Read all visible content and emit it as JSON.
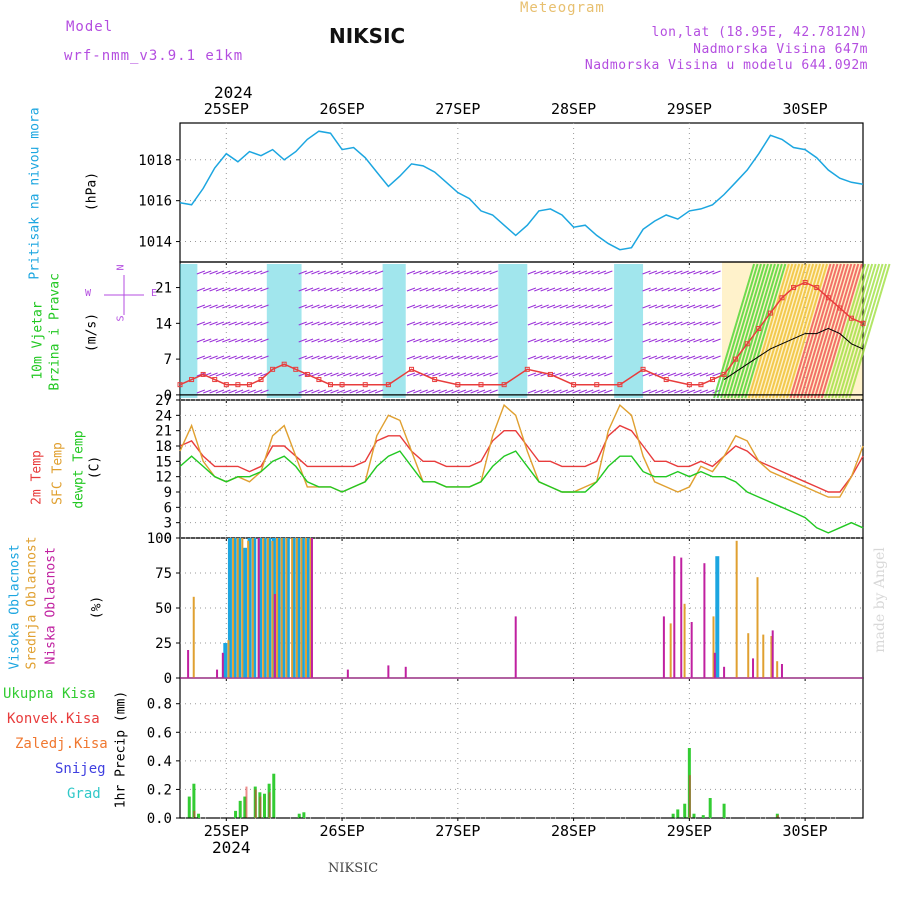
{
  "header": {
    "model_label": "Model",
    "model_version": "wrf-nmm_v3.9.1  e1km",
    "title": "NIKSIC",
    "meteogram": "Meteogram",
    "lonlat": "lon,lat (18.95E, 42.7812N)",
    "altitude": "Nadmorska Visina 647m",
    "model_altitude": "Nadmorska Visina u modelu 644.092m",
    "year_top": "2024",
    "year_bottom": "2024",
    "footer": "NIKSIC",
    "watermark": "made by Angel"
  },
  "panel_labels": {
    "pressure": "Pritisak na nivou mora",
    "pressure_unit": "(hPa)",
    "wind_1": "10m Vjetar",
    "wind_2": "Brzina i Pravac",
    "wind_unit": "(m/s)",
    "temp_2m": "2m Temp",
    "temp_sfc": "SFC Temp",
    "temp_dew": "dewpt Temp",
    "temp_unit": "(C)",
    "cloud_high": "Visoka Oblacnost",
    "cloud_mid": "Srednja Oblacnost",
    "cloud_low": "Niska Oblacnost",
    "cloud_unit": "(%)",
    "precip_axis": "1hr Precip (mm)"
  },
  "precip_legend": [
    "Ukupna Kisa",
    "Konvek.Kisa",
    "Zaledj.Kisa",
    "Snijeg",
    "Grad"
  ],
  "compass": {
    "n": "N",
    "s": "S",
    "w": "W",
    "e": "E"
  },
  "colors": {
    "pressure": "#1ca6e0",
    "temp_2m": "#e83c3c",
    "temp_sfc": "#e0a030",
    "temp_dew": "#22c822",
    "cloud_high": "#1ca6e0",
    "cloud_mid": "#e0a030",
    "cloud_low": "#c020a0",
    "precip_total": "#33cc33",
    "precip_conv": "#e03030",
    "precip_frz": "#f07830",
    "precip_snow": "#4040e0",
    "precip_hail": "#30c8c8",
    "wind_speed": "#e83c3c",
    "wind_gust": "#000000"
  },
  "chart_data": [
    {
      "type": "line",
      "panel": "pressure",
      "x_unit": "day of month (Sep 2024)",
      "x_ticks": [
        "25SEP",
        "26SEP",
        "27SEP",
        "28SEP",
        "29SEP",
        "30SEP"
      ],
      "xlim": [
        24.6,
        30.5
      ],
      "yticks": [
        1014,
        1016,
        1018
      ],
      "ylim": [
        1013.0,
        1019.8
      ],
      "series": [
        {
          "x": [
            24.6,
            24.7,
            24.8,
            24.9,
            25.0,
            25.1,
            25.2,
            25.3,
            25.4,
            25.5,
            25.6,
            25.7,
            25.8,
            25.9,
            26.0,
            26.1,
            26.2,
            26.3,
            26.4,
            26.5,
            26.6,
            26.7,
            26.8,
            26.9,
            27.0,
            27.1,
            27.2,
            27.3,
            27.4,
            27.5,
            27.6,
            27.7,
            27.8,
            27.9,
            28.0,
            28.1,
            28.2,
            28.3,
            28.4,
            28.5,
            28.6,
            28.7,
            28.8,
            28.9,
            29.0,
            29.1,
            29.2,
            29.3,
            29.4,
            29.5,
            29.6,
            29.7,
            29.8,
            29.9,
            30.0,
            30.1,
            30.2,
            30.3,
            30.4,
            30.5
          ],
          "y": [
            1015.9,
            1015.8,
            1016.6,
            1017.6,
            1018.3,
            1017.9,
            1018.4,
            1018.2,
            1018.5,
            1018.0,
            1018.4,
            1019.0,
            1019.4,
            1019.3,
            1018.5,
            1018.6,
            1018.1,
            1017.4,
            1016.7,
            1017.2,
            1017.8,
            1017.7,
            1017.4,
            1016.9,
            1016.4,
            1016.1,
            1015.5,
            1015.3,
            1014.8,
            1014.3,
            1014.8,
            1015.5,
            1015.6,
            1015.3,
            1014.7,
            1014.8,
            1014.3,
            1013.9,
            1013.6,
            1013.7,
            1014.6,
            1015.0,
            1015.3,
            1015.1,
            1015.5,
            1015.6,
            1015.8,
            1016.3,
            1016.9,
            1017.5,
            1018.3,
            1019.2,
            1019.0,
            1018.6,
            1018.5,
            1018.1,
            1017.5,
            1017.1,
            1016.9,
            1016.8
          ]
        }
      ]
    },
    {
      "type": "line",
      "panel": "wind",
      "x_unit": "day of month (Sep 2024)",
      "xlim": [
        24.6,
        30.5
      ],
      "yticks": [
        0,
        7,
        14,
        21
      ],
      "ylim": [
        -1,
        26
      ],
      "series": [
        {
          "name": "speed",
          "x": [
            24.6,
            24.7,
            24.8,
            24.9,
            25.0,
            25.1,
            25.2,
            25.3,
            25.4,
            25.5,
            25.6,
            25.7,
            25.8,
            25.9,
            26.0,
            26.2,
            26.4,
            26.6,
            26.8,
            27.0,
            27.2,
            27.4,
            27.6,
            27.8,
            28.0,
            28.2,
            28.4,
            28.6,
            28.8,
            29.0,
            29.1,
            29.2,
            29.3,
            29.4,
            29.5,
            29.6,
            29.7,
            29.8,
            29.9,
            30.0,
            30.1,
            30.2,
            30.3,
            30.4,
            30.5
          ],
          "y": [
            2,
            3,
            4,
            3,
            2,
            2,
            2,
            3,
            5,
            6,
            5,
            4,
            3,
            2,
            2,
            2,
            2,
            5,
            3,
            2,
            2,
            2,
            5,
            4,
            2,
            2,
            2,
            5,
            3,
            2,
            2,
            3,
            4,
            7,
            10,
            13,
            16,
            19,
            21,
            22,
            21,
            19,
            17,
            15,
            14
          ]
        },
        {
          "name": "gust",
          "x": [
            29.3,
            29.5,
            29.7,
            29.9,
            30.0,
            30.1,
            30.2,
            30.3,
            30.4,
            30.5
          ],
          "y": [
            3,
            6,
            9,
            11,
            12,
            12,
            13,
            12,
            10,
            9
          ]
        }
      ]
    },
    {
      "type": "line",
      "panel": "temperature",
      "x_unit": "day of month (Sep 2024)",
      "xlim": [
        24.6,
        30.5
      ],
      "yticks": [
        0,
        3,
        6,
        9,
        12,
        15,
        18,
        21,
        24,
        27
      ],
      "ylim": [
        0,
        27
      ],
      "series": [
        {
          "name": "2m Temp",
          "x": [
            24.6,
            24.7,
            24.8,
            24.9,
            25.0,
            25.1,
            25.2,
            25.3,
            25.4,
            25.5,
            25.6,
            25.7,
            25.8,
            25.9,
            26.0,
            26.1,
            26.2,
            26.3,
            26.4,
            26.5,
            26.6,
            26.7,
            26.8,
            26.9,
            27.0,
            27.1,
            27.2,
            27.3,
            27.4,
            27.5,
            27.6,
            27.7,
            27.8,
            27.9,
            28.0,
            28.1,
            28.2,
            28.3,
            28.4,
            28.5,
            28.6,
            28.7,
            28.8,
            28.9,
            29.0,
            29.1,
            29.2,
            29.3,
            29.4,
            29.5,
            29.6,
            29.7,
            29.8,
            29.9,
            30.0,
            30.1,
            30.2,
            30.3,
            30.4,
            30.5
          ],
          "y": [
            18,
            19,
            16,
            14,
            14,
            14,
            13,
            14,
            18,
            18,
            16,
            14,
            14,
            14,
            14,
            14,
            15,
            19,
            20,
            20,
            17,
            15,
            15,
            14,
            14,
            14,
            15,
            19,
            21,
            21,
            18,
            15,
            15,
            14,
            14,
            14,
            15,
            20,
            22,
            21,
            18,
            15,
            15,
            14,
            14,
            15,
            14,
            16,
            18,
            17,
            15,
            14,
            13,
            12,
            11,
            10,
            9,
            9,
            12,
            16
          ]
        },
        {
          "name": "SFC Temp",
          "x": [
            24.6,
            24.7,
            24.8,
            24.9,
            25.0,
            25.1,
            25.2,
            25.3,
            25.4,
            25.5,
            25.6,
            25.7,
            25.8,
            25.9,
            26.0,
            26.1,
            26.2,
            26.3,
            26.4,
            26.5,
            26.6,
            26.7,
            26.8,
            26.9,
            27.0,
            27.1,
            27.2,
            27.3,
            27.4,
            27.5,
            27.6,
            27.7,
            27.8,
            27.9,
            28.0,
            28.1,
            28.2,
            28.3,
            28.4,
            28.5,
            28.6,
            28.7,
            28.8,
            28.9,
            29.0,
            29.1,
            29.2,
            29.3,
            29.4,
            29.5,
            29.6,
            29.7,
            29.8,
            29.9,
            30.0,
            30.1,
            30.2,
            30.3,
            30.4,
            30.5
          ],
          "y": [
            17,
            22,
            15,
            12,
            11,
            12,
            11,
            13,
            20,
            22,
            16,
            10,
            10,
            10,
            9,
            10,
            11,
            20,
            24,
            23,
            17,
            11,
            11,
            10,
            10,
            10,
            11,
            20,
            26,
            24,
            17,
            11,
            10,
            9,
            9,
            10,
            11,
            21,
            26,
            24,
            16,
            11,
            10,
            9,
            10,
            14,
            13,
            16,
            20,
            19,
            15,
            13,
            12,
            11,
            10,
            9,
            8,
            8,
            12,
            18
          ]
        },
        {
          "name": "dewpt Temp",
          "x": [
            24.6,
            24.7,
            24.8,
            24.9,
            25.0,
            25.1,
            25.2,
            25.3,
            25.4,
            25.5,
            25.6,
            25.7,
            25.8,
            25.9,
            26.0,
            26.1,
            26.2,
            26.3,
            26.4,
            26.5,
            26.6,
            26.7,
            26.8,
            26.9,
            27.0,
            27.1,
            27.2,
            27.3,
            27.4,
            27.5,
            27.6,
            27.7,
            27.8,
            27.9,
            28.0,
            28.1,
            28.2,
            28.3,
            28.4,
            28.5,
            28.6,
            28.7,
            28.8,
            28.9,
            29.0,
            29.1,
            29.2,
            29.3,
            29.4,
            29.5,
            29.6,
            29.7,
            29.8,
            29.9,
            30.0,
            30.1,
            30.2,
            30.3,
            30.4,
            30.5
          ],
          "y": [
            14,
            16,
            14,
            12,
            11,
            12,
            12,
            13,
            15,
            16,
            14,
            11,
            10,
            10,
            9,
            10,
            11,
            14,
            16,
            17,
            14,
            11,
            11,
            10,
            10,
            10,
            11,
            14,
            16,
            17,
            14,
            11,
            10,
            9,
            9,
            9,
            11,
            14,
            16,
            16,
            13,
            12,
            12,
            13,
            12,
            13,
            12,
            12,
            11,
            9,
            8,
            7,
            6,
            5,
            4,
            2,
            1,
            2,
            3,
            2
          ]
        }
      ]
    },
    {
      "type": "bar",
      "panel": "cloud",
      "x_unit": "day of month (Sep 2024)",
      "xlim": [
        24.6,
        30.5
      ],
      "yticks": [
        0,
        25,
        50,
        75,
        100
      ],
      "ylim": [
        0,
        100
      ],
      "series": [
        {
          "name": "Visoka Oblacnost",
          "x": [
            25.0,
            25.04,
            25.08,
            25.12,
            25.17,
            25.21,
            25.25,
            25.3,
            25.34,
            25.38,
            25.42,
            25.46,
            25.5,
            25.54,
            25.59,
            25.63,
            25.67,
            25.71,
            29.25
          ],
          "y": [
            25,
            100,
            100,
            100,
            93,
            100,
            100,
            100,
            100,
            100,
            100,
            100,
            100,
            100,
            100,
            100,
            100,
            100,
            87
          ]
        },
        {
          "name": "Srednja Oblacnost",
          "x": [
            24.71,
            25.01,
            25.05,
            25.09,
            25.13,
            25.18,
            25.22,
            25.27,
            25.31,
            25.35,
            25.39,
            25.43,
            25.47,
            25.51,
            25.56,
            25.6,
            25.64,
            25.68,
            25.72,
            28.83,
            28.95,
            29.2,
            29.4,
            29.5,
            29.58,
            29.63,
            29.7,
            29.75
          ],
          "y": [
            58,
            27,
            100,
            100,
            100,
            98,
            100,
            100,
            100,
            100,
            98,
            100,
            100,
            100,
            100,
            100,
            100,
            100,
            100,
            39,
            53,
            44,
            98,
            32,
            72,
            31,
            30,
            12
          ]
        },
        {
          "name": "Niska Oblacnost",
          "x": [
            24.67,
            24.92,
            24.97,
            25.28,
            25.42,
            25.74,
            26.05,
            26.4,
            26.55,
            27.5,
            28.78,
            28.87,
            28.93,
            29.02,
            29.13,
            29.22,
            29.3,
            29.55,
            29.72,
            29.8
          ],
          "y": [
            20,
            6,
            18,
            100,
            60,
            100,
            6,
            9,
            8,
            44,
            44,
            87,
            86,
            40,
            82,
            18,
            8,
            14,
            34,
            10
          ]
        }
      ]
    },
    {
      "type": "bar",
      "panel": "precip",
      "x_unit": "day of month (Sep 2024)",
      "xlim": [
        24.6,
        30.5
      ],
      "yticks": [
        0.0,
        0.2,
        0.4,
        0.6,
        0.8
      ],
      "ylim": [
        0,
        0.98
      ],
      "series": [
        {
          "name": "Ukupna Kisa",
          "x": [
            24.68,
            24.72,
            24.76,
            25.08,
            25.12,
            25.16,
            25.25,
            25.29,
            25.33,
            25.37,
            25.41,
            25.63,
            25.67,
            28.86,
            28.9,
            28.96,
            29.0,
            29.04,
            29.12,
            29.18,
            29.3,
            29.76
          ],
          "y": [
            0.15,
            0.24,
            0.03,
            0.05,
            0.12,
            0.15,
            0.22,
            0.18,
            0.17,
            0.24,
            0.31,
            0.03,
            0.04,
            0.03,
            0.06,
            0.1,
            0.49,
            0.03,
            0.02,
            0.14,
            0.1,
            0.03
          ]
        },
        {
          "name": "Konvek.Kisa",
          "x": [
            24.72,
            25.17,
            25.25,
            25.29,
            25.37,
            29.0,
            29.76
          ],
          "y": [
            0.05,
            0.22,
            0.2,
            0.15,
            0.18,
            0.3,
            0.02
          ]
        }
      ]
    }
  ]
}
